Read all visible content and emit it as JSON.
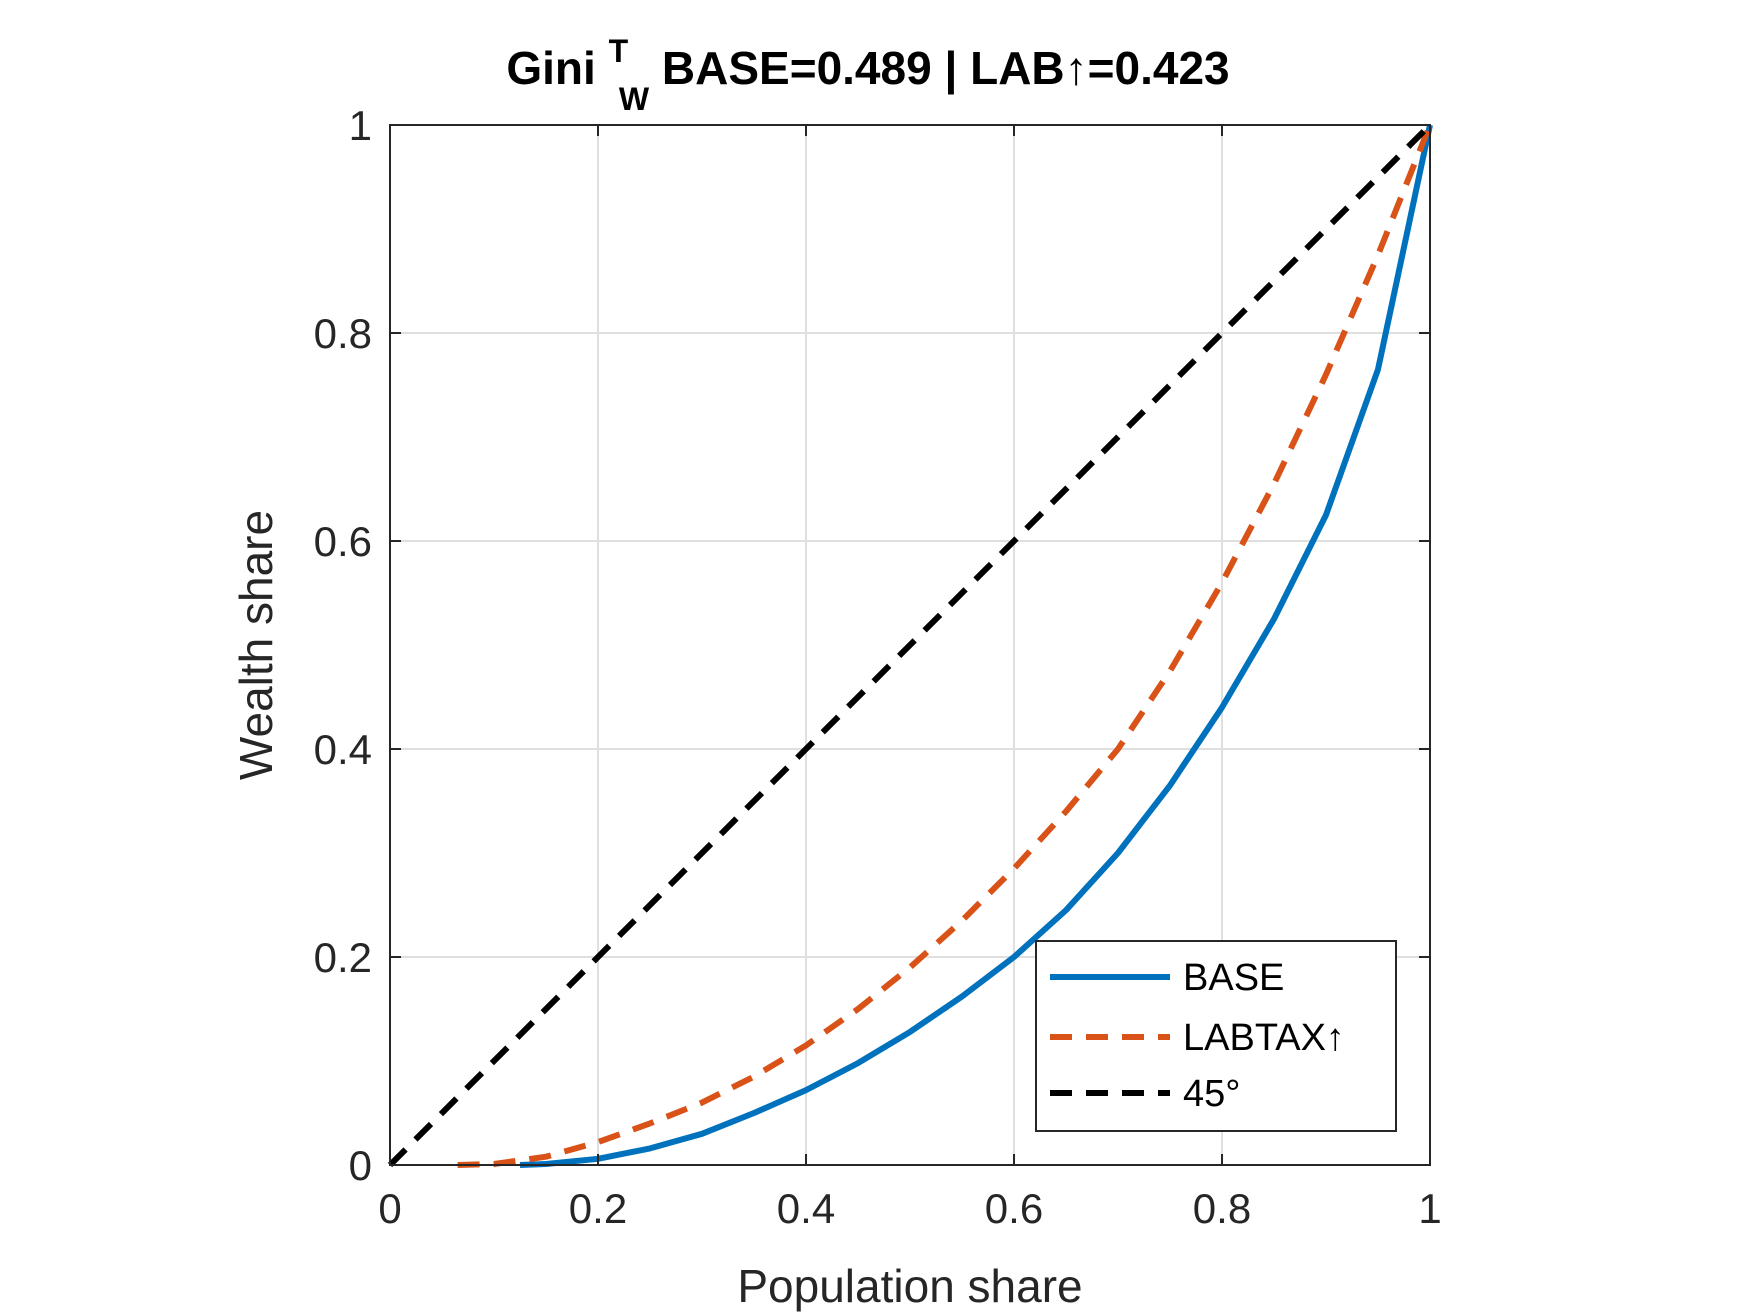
{
  "chart_data": {
    "type": "line",
    "title": {
      "prefix": "Gini",
      "superscript": "T",
      "subscript": "W",
      "suffix": " BASE=0.489 | LAB↑=0.423"
    },
    "xlabel": "Population share",
    "ylabel": "Wealth share",
    "xlim": [
      0,
      1
    ],
    "ylim": [
      0,
      1
    ],
    "xticks": [
      0,
      0.2,
      0.4,
      0.6,
      0.8,
      1
    ],
    "yticks": [
      0,
      0.2,
      0.4,
      0.6,
      0.8,
      1
    ],
    "xtick_labels": [
      "0",
      "0.2",
      "0.4",
      "0.6",
      "0.8",
      "1"
    ],
    "ytick_labels": [
      "0",
      "0.2",
      "0.4",
      "0.6",
      "0.8",
      "1"
    ],
    "grid": true,
    "legend_position": "bottom-right",
    "series": [
      {
        "name": "BASE",
        "color": "#0072BD",
        "style": "solid",
        "x": [
          0.125,
          0.15,
          0.2,
          0.25,
          0.3,
          0.35,
          0.4,
          0.45,
          0.5,
          0.55,
          0.6,
          0.65,
          0.7,
          0.75,
          0.8,
          0.85,
          0.9,
          0.95,
          1.0
        ],
        "y": [
          0.0,
          0.001,
          0.006,
          0.016,
          0.03,
          0.05,
          0.072,
          0.098,
          0.128,
          0.162,
          0.2,
          0.245,
          0.3,
          0.365,
          0.44,
          0.525,
          0.625,
          0.765,
          1.0
        ]
      },
      {
        "name": "LABTAX↑",
        "color": "#D95319",
        "style": "dashed",
        "x": [
          0.065,
          0.1,
          0.15,
          0.2,
          0.25,
          0.3,
          0.35,
          0.4,
          0.45,
          0.5,
          0.55,
          0.6,
          0.65,
          0.7,
          0.75,
          0.8,
          0.85,
          0.9,
          0.95,
          1.0
        ],
        "y": [
          0.0,
          0.001,
          0.008,
          0.022,
          0.04,
          0.06,
          0.085,
          0.115,
          0.15,
          0.19,
          0.235,
          0.285,
          0.34,
          0.4,
          0.475,
          0.56,
          0.655,
          0.76,
          0.875,
          1.0
        ]
      },
      {
        "name": "45°",
        "color": "#000000",
        "style": "dashed",
        "x": [
          0,
          1
        ],
        "y": [
          0,
          1
        ]
      }
    ]
  }
}
